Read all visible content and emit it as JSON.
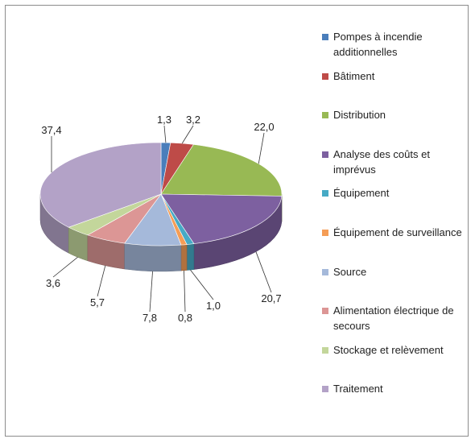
{
  "chart_data": {
    "type": "pie",
    "title": "",
    "three_d": true,
    "legend_position": "right",
    "slices": [
      {
        "label": "Pompes à incendie additionnelles",
        "value": 1.3,
        "value_label": "1,3",
        "color": "#4a7ebb"
      },
      {
        "label": "Bâtiment",
        "value": 3.2,
        "value_label": "3,2",
        "color": "#be4b48"
      },
      {
        "label": "Distribution",
        "value": 22.0,
        "value_label": "22,0",
        "color": "#98b954"
      },
      {
        "label": "Analyse des coûts et imprévus",
        "value": 20.7,
        "value_label": "20,7",
        "color": "#7d60a0"
      },
      {
        "label": "Équipement",
        "value": 1.0,
        "value_label": "1,0",
        "color": "#46aac5"
      },
      {
        "label": "Équipement de surveillance",
        "value": 0.8,
        "value_label": "0,8",
        "color": "#f59d56"
      },
      {
        "label": "Source",
        "value": 7.8,
        "value_label": "7,8",
        "color": "#a5b9da"
      },
      {
        "label": "Alimentation électrique de secours",
        "value": 5.7,
        "value_label": "5,7",
        "color": "#dc9695"
      },
      {
        "label": "Stockage et relèvement",
        "value": 3.6,
        "value_label": "3,6",
        "color": "#c3d69b"
      },
      {
        "label": "Traitement",
        "value": 37.4,
        "value_label": "37,4",
        "color": "#b3a2c7"
      }
    ]
  }
}
